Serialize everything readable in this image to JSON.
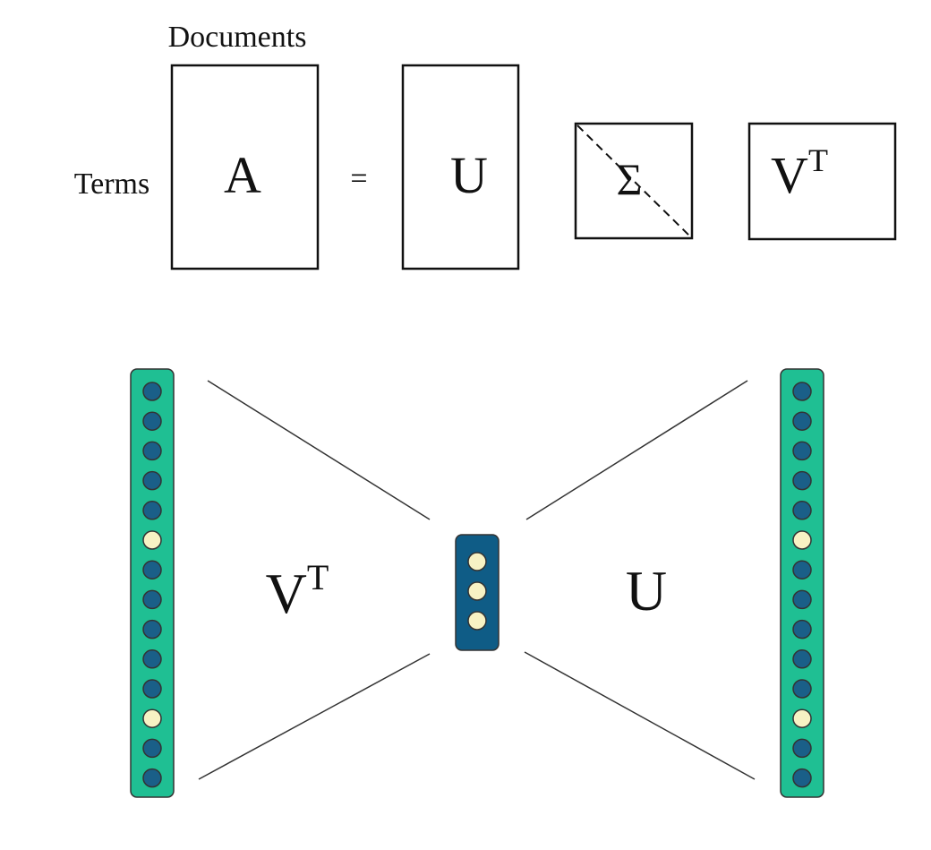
{
  "top": {
    "documents_label": "Documents",
    "terms_label": "Terms",
    "matrix_a": "A",
    "equals": "=",
    "matrix_u": "U",
    "matrix_sigma": "Σ",
    "matrix_vt_base": "V",
    "matrix_vt_sup": "T"
  },
  "bottom": {
    "left_label_base": "V",
    "left_label_sup": "T",
    "right_label": "U",
    "left_column_nodes": [
      "dark",
      "dark",
      "dark",
      "dark",
      "dark",
      "light",
      "dark",
      "dark",
      "dark",
      "dark",
      "dark",
      "light",
      "dark",
      "dark"
    ],
    "middle_column_nodes": [
      "light",
      "light",
      "light"
    ],
    "right_column_nodes": [
      "dark",
      "dark",
      "dark",
      "dark",
      "dark",
      "light",
      "dark",
      "dark",
      "dark",
      "dark",
      "dark",
      "light",
      "dark",
      "dark"
    ]
  },
  "colors": {
    "column_fill": "#1fbf93",
    "middle_fill": "#0f5c86",
    "node_dark": "#1a5f88",
    "node_light": "#f7f2c4",
    "stroke": "#333333"
  }
}
